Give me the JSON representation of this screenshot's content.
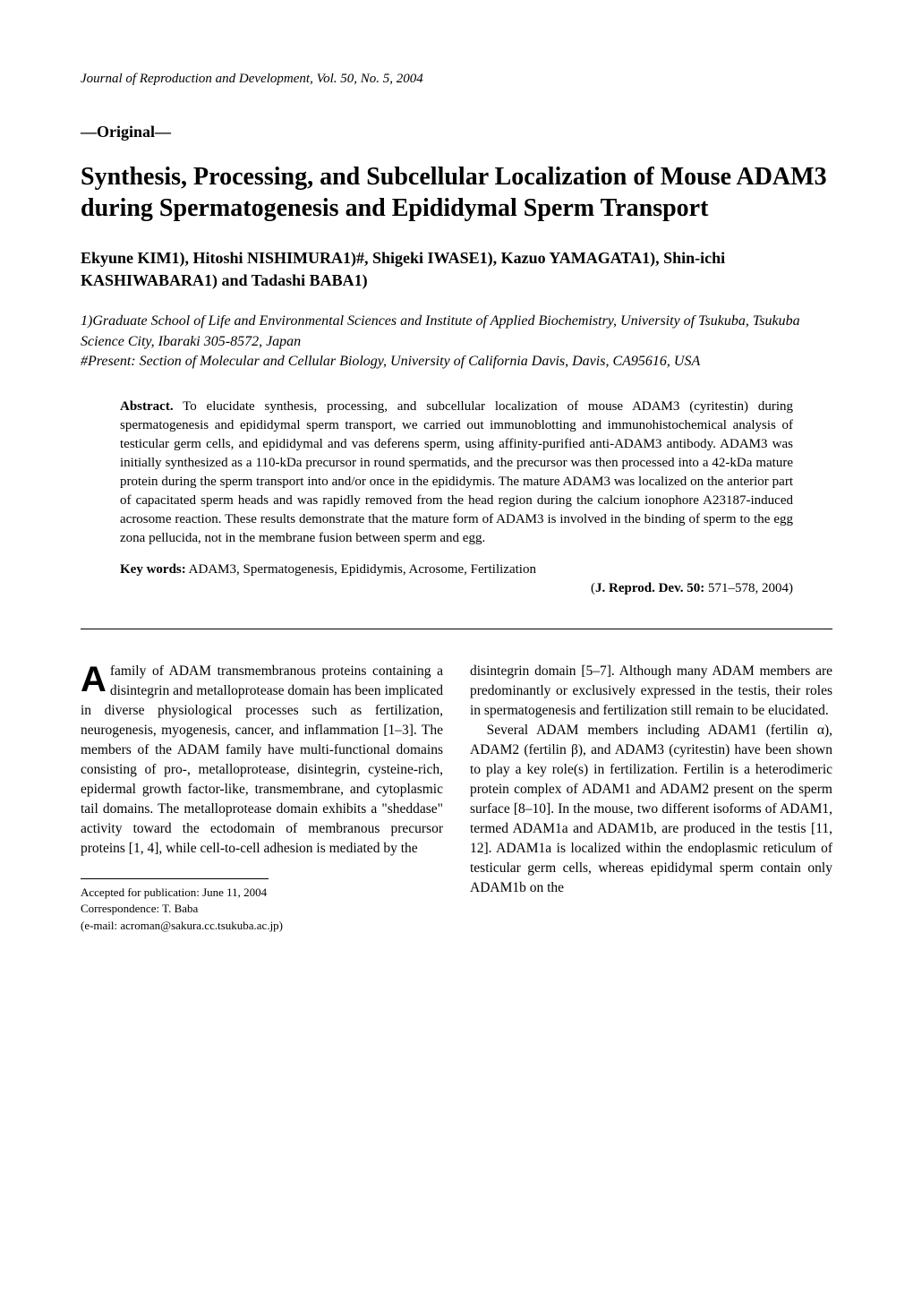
{
  "journal": {
    "name": "Journal of Reproduction and Development",
    "vol_issue_year": ", Vol. 50, No. 5, 2004"
  },
  "article_type": "—Original—",
  "title": "Synthesis, Processing, and Subcellular Localization of Mouse ADAM3 during Spermatogenesis and Epididymal Sperm Transport",
  "authors": "Ekyune KIM1), Hitoshi NISHIMURA1)#, Shigeki IWASE1), Kazuo YAMAGATA1), Shin-ichi KASHIWABARA1) and Tadashi BABA1)",
  "affiliations": {
    "line1": "1)Graduate School of Life and Environmental Sciences and Institute of Applied Biochemistry, University of Tsukuba, Tsukuba Science City, Ibaraki 305-8572, Japan",
    "line2": "#Present: Section of Molecular and Cellular Biology, University of California Davis, Davis, CA95616, USA"
  },
  "abstract": {
    "label": "Abstract.",
    "text": " To elucidate synthesis, processing, and subcellular localization of mouse ADAM3 (cyritestin) during spermatogenesis and epididymal sperm transport, we carried out immunoblotting and immunohistochemical analysis of testicular germ cells, and epididymal and vas deferens sperm, using affinity-purified anti-ADAM3 antibody. ADAM3 was initially synthesized as a 110-kDa precursor in round spermatids, and the precursor was then processed into a 42-kDa mature protein during the sperm transport into and/or once in the epididymis. The mature ADAM3 was localized on the anterior part of capacitated sperm heads and was rapidly removed from the head region during the calcium ionophore A23187-induced acrosome reaction. These results demonstrate that the mature form of ADAM3 is involved in the binding of sperm to the egg zona pellucida, not in the membrane fusion between sperm and egg."
  },
  "keywords": {
    "label": "Key words:",
    "text": " ADAM3, Spermatogenesis, Epididymis, Acrosome, Fertilization"
  },
  "citation": {
    "prefix": "(",
    "journal": "J. Reprod. Dev. 50:",
    "pages": " 571–578, 2004)"
  },
  "body": {
    "dropcap": "A",
    "col1": {
      "p1_after_drop": " family of ADAM transmembranous proteins containing a disintegrin and metalloprotease domain has been implicated in diverse physiological processes such as fertilization, neurogenesis, myogenesis, cancer, and inflammation [1–3]. The members of the ADAM family have multi-functional domains consisting of pro-, metalloprotease, disintegrin, cysteine-rich, epidermal growth factor-like, transmembrane, and cytoplasmic tail domains. The metalloprotease domain exhibits a \"sheddase\" activity toward the ectodomain of membranous precursor proteins [1, 4], while cell-to-cell adhesion is mediated by the"
    },
    "col2": {
      "p1": "disintegrin domain [5–7]. Although many ADAM members are predominantly or exclusively expressed in the testis, their roles in spermatogenesis and fertilization still remain to be elucidated.",
      "p2": "Several ADAM members including ADAM1 (fertilin α), ADAM2 (fertilin β), and ADAM3 (cyritestin) have been shown to play a key role(s) in fertilization. Fertilin is a heterodimeric protein complex of ADAM1 and ADAM2 present on the sperm surface [8–10]. In the mouse, two different isoforms of ADAM1, termed ADAM1a and ADAM1b, are produced in the testis [11, 12]. ADAM1a is localized within the endoplasmic reticulum of testicular germ cells, whereas epididymal sperm contain only ADAM1b on the"
    }
  },
  "footnotes": {
    "accepted": "Accepted for publication: June 11, 2004",
    "correspondence": "Correspondence: T. Baba",
    "email": "(e-mail: acroman@sakura.cc.tsukuba.ac.jp)"
  }
}
